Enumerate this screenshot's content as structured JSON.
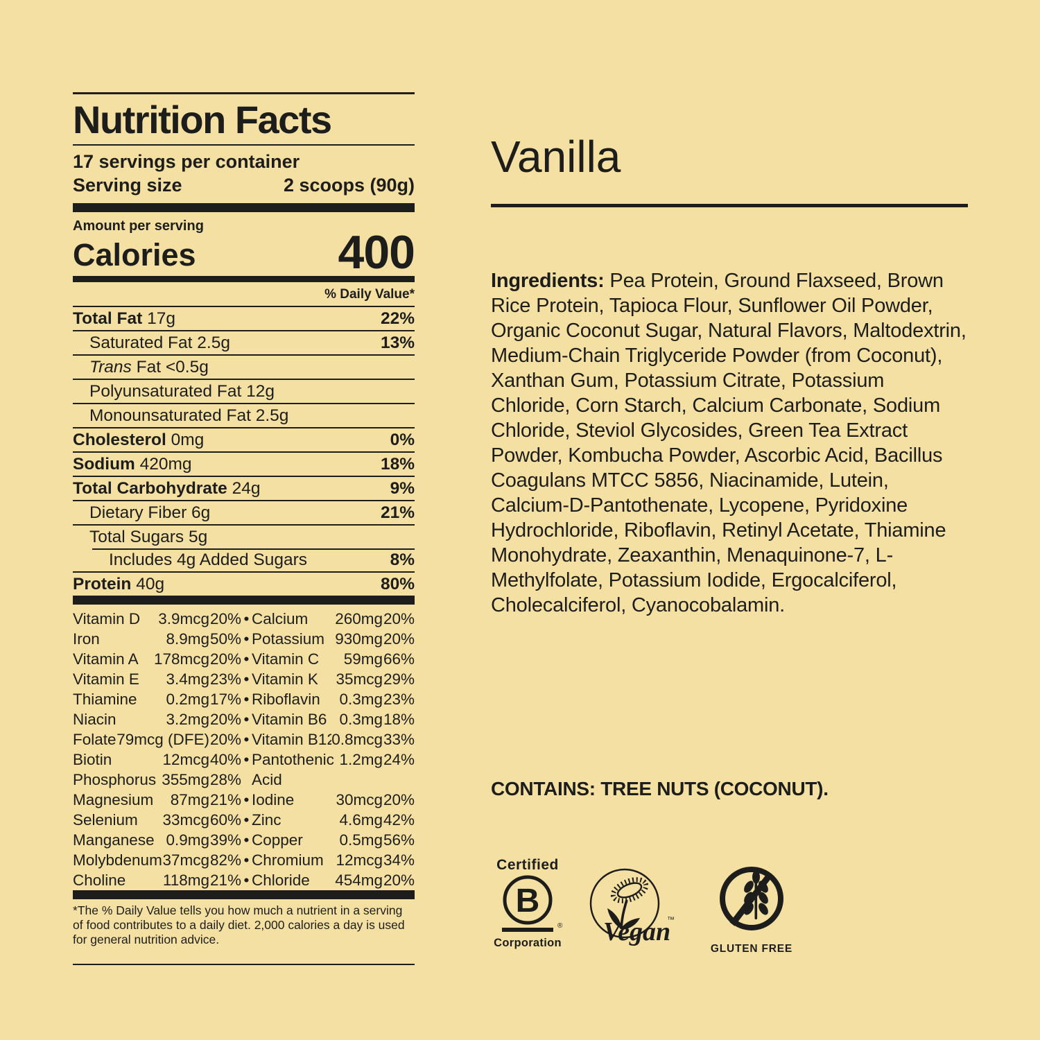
{
  "colors": {
    "background": "#F4E0A2",
    "ink": "#1D1D1B"
  },
  "panel": {
    "title": "Nutrition Facts",
    "servings_per_container": "17 servings per container",
    "serving_size_label": "Serving size",
    "serving_size_value": "2 scoops (90g)",
    "amount_per_serving": "Amount per serving",
    "calories_label": "Calories",
    "calories_value": "400",
    "daily_value_header": "% Daily Value*",
    "nutrients": [
      {
        "name": "Total Fat",
        "amount": "17g",
        "dv": "22%",
        "bold": true
      },
      {
        "name": "Saturated Fat",
        "amount": "2.5g",
        "dv": "13%",
        "indent": 1
      },
      {
        "italic": "Trans",
        "name": "Fat",
        "amount": "<0.5g",
        "indent": 1
      },
      {
        "name": "Polyunsaturated Fat",
        "amount": "12g",
        "indent": 1
      },
      {
        "name": "Monounsaturated Fat",
        "amount": "2.5g",
        "indent": 1
      },
      {
        "name": "Cholesterol",
        "amount": "0mg",
        "dv": "0%",
        "bold": true
      },
      {
        "name": "Sodium",
        "amount": "420mg",
        "dv": "18%",
        "bold": true
      },
      {
        "name": "Total Carbohydrate",
        "amount": "24g",
        "dv": "9%",
        "bold": true
      },
      {
        "name": "Dietary Fiber",
        "amount": "6g",
        "dv": "21%",
        "indent": 1
      },
      {
        "name": "Total Sugars",
        "amount": "5g",
        "indent": 1
      },
      {
        "name": "Includes 4g Added Sugars",
        "amount": "",
        "dv": "8%",
        "indent": 2,
        "indent_rule": true
      },
      {
        "name": "Protein",
        "amount": "40g",
        "dv": "80%",
        "bold": true
      }
    ],
    "micronutrients": [
      {
        "l": [
          "Vitamin D",
          "3.9mcg",
          "20%"
        ],
        "bullet": true,
        "r": [
          "Calcium",
          "260mg",
          "20%"
        ]
      },
      {
        "l": [
          "Iron",
          "8.9mg",
          "50%"
        ],
        "bullet": true,
        "r": [
          "Potassium",
          "930mg",
          "20%"
        ]
      },
      {
        "l": [
          "Vitamin A",
          "178mcg",
          "20%"
        ],
        "bullet": true,
        "r": [
          "Vitamin C",
          "59mg",
          "66%"
        ]
      },
      {
        "l": [
          "Vitamin E",
          "3.4mg",
          "23%"
        ],
        "bullet": true,
        "r": [
          "Vitamin K",
          "35mcg",
          "29%"
        ]
      },
      {
        "l": [
          "Thiamine",
          "0.2mg",
          "17%"
        ],
        "bullet": true,
        "r": [
          "Riboflavin",
          "0.3mg",
          "23%"
        ]
      },
      {
        "l": [
          "Niacin",
          "3.2mg",
          "20%"
        ],
        "bullet": true,
        "r": [
          "Vitamin B6",
          "0.3mg",
          "18%"
        ]
      },
      {
        "l": [
          "Folate",
          "79mcg (DFE)",
          "20%"
        ],
        "bullet": true,
        "r": [
          "Vitamin B12",
          "0.8mcg",
          "33%"
        ]
      },
      {
        "l": [
          "Biotin",
          "12mcg",
          "40%"
        ],
        "bullet": true,
        "r": [
          "Pantothenic",
          "1.2mg",
          "24%"
        ]
      },
      {
        "l": [
          "Phosphorus",
          "355mg",
          "28%"
        ],
        "bullet": false,
        "r": [
          "Acid",
          "",
          ""
        ]
      },
      {
        "l": [
          "Magnesium",
          "87mg",
          "21%"
        ],
        "bullet": true,
        "r": [
          "Iodine",
          "30mcg",
          "20%"
        ]
      },
      {
        "l": [
          "Selenium",
          "33mcg",
          "60%"
        ],
        "bullet": true,
        "r": [
          "Zinc",
          "4.6mg",
          "42%"
        ]
      },
      {
        "l": [
          "Manganese",
          "0.9mg",
          "39%"
        ],
        "bullet": true,
        "r": [
          "Copper",
          "0.5mg",
          "56%"
        ]
      },
      {
        "l": [
          "Molybdenum",
          "37mcg",
          "82%"
        ],
        "bullet": true,
        "r": [
          "Chromium",
          "12mcg",
          "34%"
        ]
      },
      {
        "l": [
          "Choline",
          "118mg",
          "21%"
        ],
        "bullet": true,
        "r": [
          "Chloride",
          "454mg",
          "20%"
        ]
      }
    ],
    "footnote": "*The % Daily Value tells you how much a nutrient in a serving of food contributes to a daily diet. 2,000 calories a day is used for general nutrition advice."
  },
  "flavor": {
    "name": "Vanilla",
    "ingredients_label": "Ingredients:",
    "ingredients_text": "Pea Protein, Ground Flaxseed, Brown Rice Protein, Tapioca Flour, Sunflower Oil Powder, Organic Coconut Sugar, Natural Flavors, Maltodextrin, Medium-Chain Triglyceride Powder (from Coconut), Xanthan Gum, Potassium Citrate, Potassium Chloride, Corn Starch, Calcium Carbonate, Sodium Chloride, Steviol Glycosides, Green Tea Extract Powder, Kombucha Powder, Ascorbic Acid, Bacillus Coagulans MTCC 5856, Niacinamide, Lutein, Calcium-D-Pantothenate, Lycopene, Pyridoxine Hydrochloride, Riboflavin, Retinyl Acetate, Thiamine Monohydrate, Zeaxanthin, Menaquinone-7, L-Methylfolate, Potassium Iodide, Ergocalciferol, Cholecalciferol, Cyanocobalamin.",
    "contains": "CONTAINS: TREE NUTS (COCONUT)."
  },
  "badges": {
    "bcorp": {
      "top": "Certified",
      "letter": "B",
      "reg": "®",
      "bottom": "Corporation"
    },
    "vegan": {
      "word": "Vegan",
      "tm": "™"
    },
    "gluten_free": {
      "label": "GLUTEN FREE"
    }
  }
}
